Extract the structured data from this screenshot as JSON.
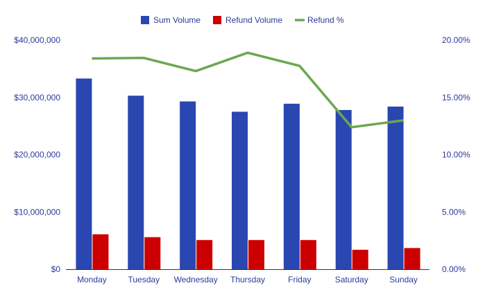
{
  "chart_data": {
    "type": "bar",
    "categories": [
      "Monday",
      "Tuesday",
      "Wednesday",
      "Thursday",
      "Friday",
      "Saturday",
      "Sunday"
    ],
    "series": [
      {
        "name": "Sum Volume",
        "kind": "bar",
        "axis": "left",
        "color": "#2a46b0",
        "values": [
          33300000,
          30300000,
          29300000,
          27500000,
          28900000,
          27800000,
          28400000
        ]
      },
      {
        "name": "Refund Volume",
        "kind": "bar",
        "axis": "left",
        "color": "#cc0000",
        "values": [
          6100000,
          5600000,
          5100000,
          5100000,
          5100000,
          3400000,
          3700000
        ]
      },
      {
        "name": "Refund %",
        "kind": "line",
        "axis": "right",
        "color": "#6aa84f",
        "values": [
          18.4,
          18.45,
          17.3,
          18.9,
          17.75,
          12.4,
          13.0
        ]
      }
    ],
    "left_axis": {
      "min": 0,
      "max": 40000000,
      "ticks": [
        "$0",
        "$10,000,000",
        "$20,000,000",
        "$30,000,000",
        "$40,000,000"
      ]
    },
    "right_axis": {
      "min": 0,
      "max": 20,
      "ticks": [
        "0.00%",
        "5.00%",
        "10.00%",
        "15.00%",
        "20.00%"
      ]
    },
    "legend": {
      "position": "top"
    },
    "grid": false
  }
}
